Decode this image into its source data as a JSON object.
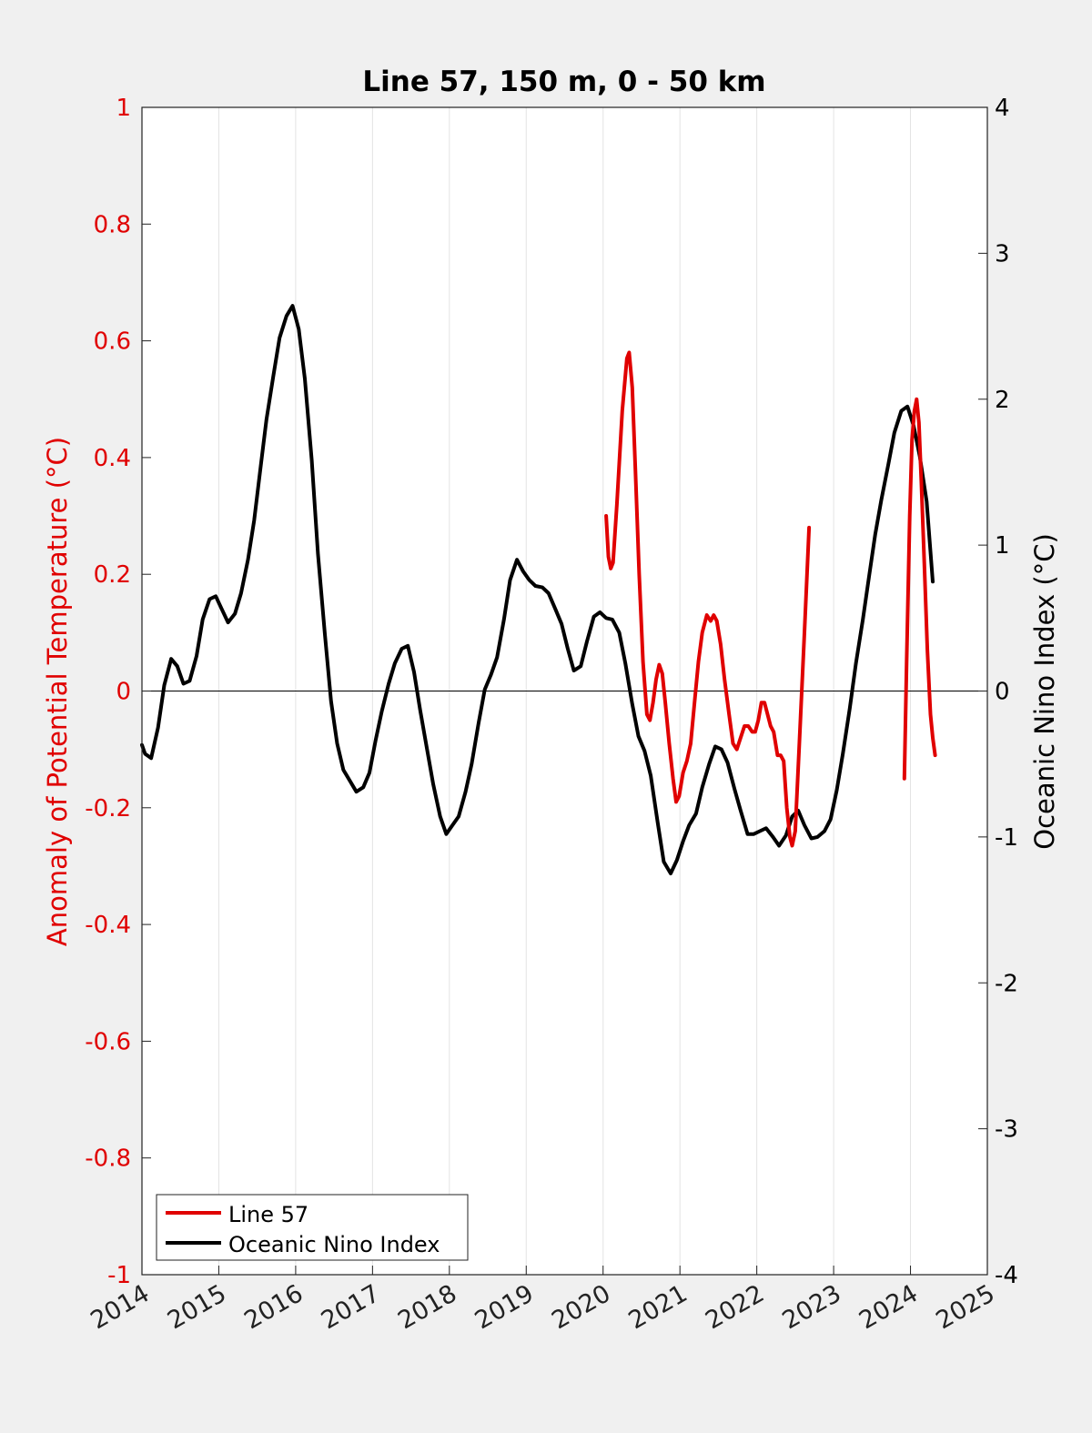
{
  "chart_data": {
    "type": "line",
    "title": "Line 57, 150 m, 0 - 50 km",
    "xlabel": "",
    "ylabel": "Anomaly of Potential Temperature (°C)",
    "ylabel_right": "Oceanic Nino Index (°C)",
    "xlim": [
      2014,
      2025
    ],
    "ylim": [
      -1,
      1
    ],
    "ylim_right": [
      -4,
      4
    ],
    "x_ticks": [
      "2014",
      "2015",
      "2016",
      "2017",
      "2018",
      "2019",
      "2020",
      "2021",
      "2022",
      "2023",
      "2024",
      "2025"
    ],
    "y_ticks": [
      "-1",
      "-0.8",
      "-0.6",
      "-0.4",
      "-0.2",
      "0",
      "0.2",
      "0.4",
      "0.6",
      "0.8",
      "1"
    ],
    "y_ticks_right": [
      "-4",
      "-3",
      "-2",
      "-1",
      "0",
      "1",
      "2",
      "3",
      "4"
    ],
    "grid": "vertical",
    "legend": "bottom-left",
    "colors": {
      "line57": "#e00000",
      "oni": "#000000",
      "left_axis": "#e00000",
      "right_axis": "#000000"
    },
    "series": [
      {
        "name": "Line 57",
        "axis": "left",
        "color": "#e00000",
        "segments": [
          [
            [
              2020.04,
              0.3
            ],
            [
              2020.07,
              0.23
            ],
            [
              2020.1,
              0.21
            ],
            [
              2020.13,
              0.22
            ],
            [
              2020.18,
              0.32
            ],
            [
              2020.25,
              0.48
            ],
            [
              2020.31,
              0.57
            ],
            [
              2020.34,
              0.58
            ],
            [
              2020.38,
              0.52
            ],
            [
              2020.42,
              0.38
            ],
            [
              2020.47,
              0.2
            ],
            [
              2020.52,
              0.05
            ],
            [
              2020.57,
              -0.04
            ],
            [
              2020.61,
              -0.05
            ],
            [
              2020.65,
              -0.02
            ],
            [
              2020.69,
              0.02
            ],
            [
              2020.73,
              0.045
            ],
            [
              2020.77,
              0.03
            ],
            [
              2020.81,
              -0.02
            ],
            [
              2020.86,
              -0.09
            ],
            [
              2020.91,
              -0.15
            ],
            [
              2020.95,
              -0.19
            ],
            [
              2020.99,
              -0.18
            ],
            [
              2021.04,
              -0.14
            ],
            [
              2021.09,
              -0.12
            ],
            [
              2021.14,
              -0.09
            ],
            [
              2021.19,
              -0.02
            ],
            [
              2021.24,
              0.05
            ],
            [
              2021.29,
              0.1
            ],
            [
              2021.35,
              0.13
            ],
            [
              2021.4,
              0.12
            ],
            [
              2021.44,
              0.13
            ],
            [
              2021.48,
              0.12
            ],
            [
              2021.53,
              0.08
            ],
            [
              2021.58,
              0.02
            ],
            [
              2021.64,
              -0.04
            ],
            [
              2021.69,
              -0.09
            ],
            [
              2021.74,
              -0.1
            ],
            [
              2021.79,
              -0.08
            ],
            [
              2021.84,
              -0.06
            ],
            [
              2021.89,
              -0.06
            ],
            [
              2021.94,
              -0.07
            ],
            [
              2021.98,
              -0.07
            ],
            [
              2022.02,
              -0.05
            ],
            [
              2022.06,
              -0.02
            ],
            [
              2022.1,
              -0.02
            ],
            [
              2022.14,
              -0.04
            ],
            [
              2022.18,
              -0.06
            ],
            [
              2022.22,
              -0.07
            ],
            [
              2022.27,
              -0.11
            ],
            [
              2022.31,
              -0.11
            ],
            [
              2022.35,
              -0.12
            ],
            [
              2022.39,
              -0.2
            ],
            [
              2022.43,
              -0.25
            ],
            [
              2022.46,
              -0.265
            ],
            [
              2022.5,
              -0.24
            ],
            [
              2022.55,
              -0.1
            ],
            [
              2022.62,
              0.1
            ],
            [
              2022.68,
              0.28
            ]
          ],
          [
            [
              2023.92,
              -0.15
            ],
            [
              2023.95,
              0.05
            ],
            [
              2023.99,
              0.3
            ],
            [
              2024.02,
              0.43
            ],
            [
              2024.05,
              0.48
            ],
            [
              2024.08,
              0.5
            ],
            [
              2024.11,
              0.46
            ],
            [
              2024.14,
              0.36
            ],
            [
              2024.18,
              0.22
            ],
            [
              2024.22,
              0.07
            ],
            [
              2024.26,
              -0.04
            ],
            [
              2024.29,
              -0.08
            ],
            [
              2024.32,
              -0.11
            ]
          ]
        ]
      },
      {
        "name": "Oceanic Nino Index",
        "axis": "right",
        "color": "#000000",
        "segments": [
          [
            [
              2014.0,
              -0.37
            ],
            [
              2014.04,
              -0.43
            ],
            [
              2014.12,
              -0.46
            ],
            [
              2014.21,
              -0.25
            ],
            [
              2014.29,
              0.04
            ],
            [
              2014.38,
              0.22
            ],
            [
              2014.46,
              0.17
            ],
            [
              2014.54,
              0.05
            ],
            [
              2014.62,
              0.07
            ],
            [
              2014.71,
              0.24
            ],
            [
              2014.79,
              0.49
            ],
            [
              2014.88,
              0.63
            ],
            [
              2014.96,
              0.65
            ],
            [
              2015.04,
              0.56
            ],
            [
              2015.12,
              0.47
            ],
            [
              2015.21,
              0.53
            ],
            [
              2015.29,
              0.67
            ],
            [
              2015.38,
              0.9
            ],
            [
              2015.46,
              1.17
            ],
            [
              2015.54,
              1.52
            ],
            [
              2015.62,
              1.86
            ],
            [
              2015.71,
              2.16
            ],
            [
              2015.79,
              2.42
            ],
            [
              2015.88,
              2.57
            ],
            [
              2015.96,
              2.64
            ],
            [
              2016.04,
              2.48
            ],
            [
              2016.12,
              2.14
            ],
            [
              2016.21,
              1.58
            ],
            [
              2016.29,
              0.94
            ],
            [
              2016.38,
              0.39
            ],
            [
              2016.46,
              -0.07
            ],
            [
              2016.54,
              -0.36
            ],
            [
              2016.62,
              -0.54
            ],
            [
              2016.71,
              -0.62
            ],
            [
              2016.79,
              -0.69
            ],
            [
              2016.88,
              -0.66
            ],
            [
              2016.96,
              -0.56
            ],
            [
              2017.04,
              -0.34
            ],
            [
              2017.12,
              -0.14
            ],
            [
              2017.21,
              0.05
            ],
            [
              2017.29,
              0.19
            ],
            [
              2017.38,
              0.29
            ],
            [
              2017.46,
              0.31
            ],
            [
              2017.54,
              0.13
            ],
            [
              2017.62,
              -0.13
            ],
            [
              2017.71,
              -0.4
            ],
            [
              2017.79,
              -0.64
            ],
            [
              2017.88,
              -0.86
            ],
            [
              2017.96,
              -0.98
            ],
            [
              2018.04,
              -0.92
            ],
            [
              2018.12,
              -0.86
            ],
            [
              2018.21,
              -0.69
            ],
            [
              2018.29,
              -0.5
            ],
            [
              2018.38,
              -0.22
            ],
            [
              2018.46,
              0.01
            ],
            [
              2018.54,
              0.11
            ],
            [
              2018.62,
              0.23
            ],
            [
              2018.71,
              0.49
            ],
            [
              2018.79,
              0.76
            ],
            [
              2018.88,
              0.9
            ],
            [
              2018.96,
              0.82
            ],
            [
              2019.04,
              0.76
            ],
            [
              2019.12,
              0.72
            ],
            [
              2019.21,
              0.71
            ],
            [
              2019.29,
              0.67
            ],
            [
              2019.38,
              0.56
            ],
            [
              2019.46,
              0.46
            ],
            [
              2019.54,
              0.29
            ],
            [
              2019.62,
              0.14
            ],
            [
              2019.71,
              0.17
            ],
            [
              2019.79,
              0.34
            ],
            [
              2019.88,
              0.51
            ],
            [
              2019.96,
              0.54
            ],
            [
              2020.04,
              0.5
            ],
            [
              2020.12,
              0.49
            ],
            [
              2020.21,
              0.4
            ],
            [
              2020.29,
              0.19
            ],
            [
              2020.38,
              -0.09
            ],
            [
              2020.46,
              -0.31
            ],
            [
              2020.54,
              -0.41
            ],
            [
              2020.62,
              -0.58
            ],
            [
              2020.71,
              -0.9
            ],
            [
              2020.79,
              -1.17
            ],
            [
              2020.88,
              -1.25
            ],
            [
              2020.96,
              -1.16
            ],
            [
              2021.04,
              -1.03
            ],
            [
              2021.12,
              -0.92
            ],
            [
              2021.21,
              -0.84
            ],
            [
              2021.29,
              -0.66
            ],
            [
              2021.38,
              -0.5
            ],
            [
              2021.46,
              -0.38
            ],
            [
              2021.54,
              -0.4
            ],
            [
              2021.62,
              -0.49
            ],
            [
              2021.71,
              -0.67
            ],
            [
              2021.79,
              -0.82
            ],
            [
              2021.88,
              -0.98
            ],
            [
              2021.96,
              -0.98
            ],
            [
              2022.04,
              -0.96
            ],
            [
              2022.12,
              -0.94
            ],
            [
              2022.21,
              -1.0
            ],
            [
              2022.29,
              -1.06
            ],
            [
              2022.38,
              -0.99
            ],
            [
              2022.46,
              -0.86
            ],
            [
              2022.54,
              -0.82
            ],
            [
              2022.62,
              -0.92
            ],
            [
              2022.71,
              -1.01
            ],
            [
              2022.79,
              -1.0
            ],
            [
              2022.88,
              -0.96
            ],
            [
              2022.96,
              -0.88
            ],
            [
              2023.04,
              -0.68
            ],
            [
              2023.12,
              -0.43
            ],
            [
              2023.21,
              -0.12
            ],
            [
              2023.29,
              0.19
            ],
            [
              2023.38,
              0.49
            ],
            [
              2023.46,
              0.78
            ],
            [
              2023.54,
              1.07
            ],
            [
              2023.62,
              1.31
            ],
            [
              2023.71,
              1.55
            ],
            [
              2023.79,
              1.77
            ],
            [
              2023.88,
              1.92
            ],
            [
              2023.96,
              1.95
            ],
            [
              2024.04,
              1.82
            ],
            [
              2024.12,
              1.61
            ],
            [
              2024.21,
              1.3
            ],
            [
              2024.29,
              0.75
            ]
          ]
        ]
      }
    ]
  }
}
